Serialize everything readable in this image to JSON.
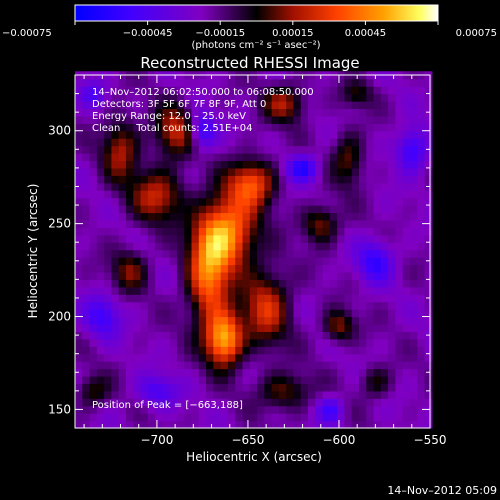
{
  "chart_data": {
    "type": "heatmap",
    "title": "Reconstructed RHESSI Image",
    "xlabel": "Heliocentric X (arcsec)",
    "ylabel": "Heliocentric Y (arcsec)",
    "xlim": [
      -745,
      -550
    ],
    "ylim": [
      140,
      330
    ],
    "xticks": [
      -700,
      -650,
      -600,
      -550
    ],
    "yticks": [
      150,
      200,
      250,
      300
    ],
    "xtick_labels": [
      "−700",
      "−650",
      "−600",
      "−550"
    ],
    "ytick_labels": [
      "150",
      "200",
      "250",
      "300"
    ],
    "colorbar": {
      "range": [
        -0.00075,
        0.00075
      ],
      "ticks": [
        -0.00075,
        -0.00045,
        -0.00015,
        0.00015,
        0.00045,
        0.00075
      ],
      "tick_labels": [
        "−0.00075",
        "−0.00045",
        "−0.00015",
        "0.00015",
        "0.00045",
        "0.00075"
      ],
      "units": "(photons cm⁻² s⁻¹ asec⁻²)",
      "colors": [
        "#0000ff",
        "#4000ff",
        "#8000c0",
        "#000000",
        "#a01000",
        "#ff4000",
        "#ffa000",
        "#ffff60",
        "#ffffff"
      ]
    },
    "annotations": [
      "14–Nov–2012 06:02:50.000 to 06:08:50.000",
      "Detectors: 3F 5F 6F 7F 8F 9F, Att 0",
      "Energy Range: 12.0 – 25.0 keV",
      "Clean     Total counts: 2.51E+04"
    ],
    "peak_label": "Position of Peak = [−663,188]",
    "peak": [
      -663,
      188
    ],
    "sources": [
      {
        "x": -663,
        "y": 188,
        "sx": 7,
        "sy": 10,
        "amp": 1.0
      },
      {
        "x": -662,
        "y": 245,
        "sx": 11,
        "sy": 14,
        "amp": 0.95
      },
      {
        "x": -648,
        "y": 272,
        "sx": 9,
        "sy": 9,
        "amp": 0.7
      },
      {
        "x": -672,
        "y": 220,
        "sx": 8,
        "sy": 18,
        "amp": 0.75
      },
      {
        "x": -640,
        "y": 205,
        "sx": 9,
        "sy": 14,
        "amp": 0.6
      },
      {
        "x": -700,
        "y": 265,
        "sx": 10,
        "sy": 10,
        "amp": 0.55
      },
      {
        "x": -690,
        "y": 300,
        "sx": 8,
        "sy": 10,
        "amp": 0.55
      },
      {
        "x": -720,
        "y": 290,
        "sx": 7,
        "sy": 12,
        "amp": 0.5
      },
      {
        "x": -715,
        "y": 225,
        "sx": 7,
        "sy": 8,
        "amp": 0.4
      },
      {
        "x": -735,
        "y": 160,
        "sx": 6,
        "sy": 6,
        "amp": 0.35
      },
      {
        "x": -630,
        "y": 315,
        "sx": 8,
        "sy": 7,
        "amp": 0.5
      },
      {
        "x": -610,
        "y": 250,
        "sx": 7,
        "sy": 7,
        "amp": 0.45
      },
      {
        "x": -595,
        "y": 285,
        "sx": 6,
        "sy": 10,
        "amp": 0.4
      },
      {
        "x": -630,
        "y": 160,
        "sx": 10,
        "sy": 7,
        "amp": 0.4
      },
      {
        "x": -600,
        "y": 195,
        "sx": 6,
        "sy": 6,
        "amp": 0.45
      },
      {
        "x": -580,
        "y": 165,
        "sx": 6,
        "sy": 6,
        "amp": 0.3
      },
      {
        "x": -590,
        "y": 320,
        "sx": 6,
        "sy": 5,
        "amp": 0.3
      },
      {
        "x": -675,
        "y": 300,
        "sx": 5,
        "sy": 7,
        "amp": -0.5
      },
      {
        "x": -620,
        "y": 280,
        "sx": 6,
        "sy": 5,
        "amp": -0.55
      },
      {
        "x": -580,
        "y": 230,
        "sx": 7,
        "sy": 8,
        "amp": -0.45
      },
      {
        "x": -730,
        "y": 200,
        "sx": 7,
        "sy": 8,
        "amp": -0.4
      },
      {
        "x": -700,
        "y": 160,
        "sx": 8,
        "sy": 6,
        "amp": -0.35
      },
      {
        "x": -560,
        "y": 290,
        "sx": 6,
        "sy": 8,
        "amp": -0.5
      },
      {
        "x": -605,
        "y": 150,
        "sx": 5,
        "sy": 5,
        "amp": -0.4
      },
      {
        "x": -735,
        "y": 320,
        "sx": 5,
        "sy": 5,
        "amp": -0.3
      }
    ]
  },
  "footer_timestamp": "14–Nov–2012 05:09"
}
